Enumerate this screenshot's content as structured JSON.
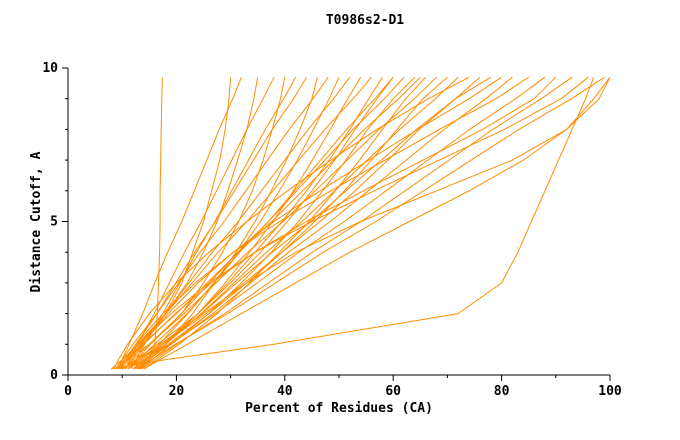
{
  "title": "T0986s2-D1",
  "colors": {
    "curve": "#ff8c00",
    "axis": "#000000",
    "background": "#ffffff"
  },
  "axes": {
    "xticks_major": [
      0,
      20,
      40,
      60,
      80,
      100
    ],
    "xticks_minor": [
      10,
      30,
      50,
      70,
      90
    ],
    "yticks_major": [
      0,
      5,
      10
    ],
    "yticks_minor": [
      1,
      2,
      3,
      4,
      6,
      7,
      8,
      9
    ]
  },
  "chart_data": {
    "type": "line",
    "title": "T0986s2-D1",
    "xlabel": "Percent of Residues (CA)",
    "ylabel": "Distance Cutoff, A",
    "xlim": [
      0,
      100
    ],
    "ylim": [
      0,
      10
    ],
    "grid": false,
    "legend": "none",
    "line_color": "#ff8c00",
    "cutoffs": [
      0.2,
      0.5,
      1,
      2,
      3,
      4,
      5,
      6,
      7,
      8,
      9,
      9.7
    ],
    "series": [
      [
        13,
        15,
        16,
        16.5,
        16.7,
        16.9,
        17,
        17,
        17.1,
        17.2,
        17.3,
        17.4
      ],
      [
        9,
        11,
        14,
        18,
        21,
        23,
        25,
        26.5,
        28,
        29,
        29.7,
        30
      ],
      [
        9.4,
        10,
        11.3,
        13.8,
        16,
        18.4,
        21,
        23.3,
        25.6,
        27.9,
        30.4,
        32
      ],
      [
        8,
        10,
        13,
        18,
        22,
        25,
        27.5,
        29.5,
        31.3,
        33,
        34.3,
        35
      ],
      [
        10.6,
        11.4,
        12.8,
        15.9,
        18.7,
        21.5,
        24.6,
        27.4,
        30.2,
        33,
        36,
        38
      ],
      [
        9,
        11,
        15,
        21,
        25,
        28.5,
        31.5,
        34,
        36,
        37.7,
        39.2,
        40
      ],
      [
        11.6,
        12.6,
        14.1,
        17.5,
        20.6,
        23.7,
        27.1,
        30.2,
        33.3,
        36.4,
        39.8,
        42
      ],
      [
        9.7,
        10.8,
        12.5,
        16.4,
        19.9,
        23.4,
        27.2,
        30.7,
        34.2,
        37.7,
        41.6,
        44
      ],
      [
        13,
        15,
        18,
        23,
        27,
        31,
        34.5,
        37.5,
        40.3,
        42.8,
        45,
        46
      ],
      [
        8.8,
        10,
        12,
        16.4,
        20.4,
        24.4,
        28.8,
        32.8,
        36.8,
        40.8,
        45.2,
        48
      ],
      [
        11,
        13,
        16,
        22,
        27,
        31.5,
        35.5,
        39,
        42.3,
        45.3,
        48.2,
        50
      ],
      [
        9.9,
        11.2,
        13.3,
        18,
        22.3,
        26.6,
        31.4,
        35.7,
        40,
        44.3,
        49,
        52
      ],
      [
        12,
        14,
        18,
        24,
        29,
        33.5,
        37.8,
        41.6,
        45.1,
        48.4,
        51.6,
        54
      ],
      [
        9,
        10.4,
        12.8,
        18.1,
        22.9,
        27.7,
        33,
        37.8,
        42.6,
        47.4,
        52.6,
        56
      ],
      [
        11,
        13.5,
        17.5,
        24,
        29.5,
        34.5,
        39.5,
        44,
        48.2,
        52,
        55.5,
        58
      ],
      [
        13,
        14.4,
        16.8,
        22.1,
        26.9,
        31.7,
        37,
        41.8,
        46.6,
        51.4,
        56.6,
        60
      ],
      [
        10,
        12.5,
        16.5,
        24,
        30,
        35.5,
        40.5,
        45,
        49.2,
        53,
        57,
        60
      ],
      [
        11,
        12.6,
        15.2,
        20.9,
        26.1,
        31.3,
        37,
        42.2,
        47.4,
        52.6,
        58.4,
        62
      ],
      [
        12,
        14.5,
        19,
        26,
        32,
        37.5,
        42.5,
        47,
        51.3,
        55.3,
        60,
        64
      ],
      [
        9.1,
        10.9,
        13.7,
        20,
        25.7,
        31.4,
        37.6,
        43.3,
        49,
        54.7,
        61,
        65
      ],
      [
        14,
        16.5,
        20.5,
        27.5,
        33.5,
        39,
        44.5,
        49.3,
        53.8,
        58,
        62.3,
        66
      ],
      [
        10.2,
        12,
        15,
        21.4,
        27.3,
        33.2,
        39.7,
        45.6,
        51.5,
        57.4,
        63.9,
        68
      ],
      [
        11,
        14,
        18.5,
        26,
        33,
        39.5,
        45.5,
        51,
        56,
        60.7,
        65.5,
        70
      ],
      [
        13.2,
        15,
        18,
        24.6,
        30.6,
        36.6,
        43.2,
        49.2,
        55.2,
        61.2,
        67.8,
        72
      ],
      [
        8.5,
        9.3,
        11,
        15,
        20,
        26,
        33,
        40.5,
        48.5,
        57,
        66.5,
        74
      ],
      [
        12.3,
        14.3,
        17.5,
        24.7,
        31.1,
        37.7,
        44.8,
        51.3,
        57.8,
        64.3,
        71.5,
        76
      ],
      [
        10,
        13,
        17.5,
        25.5,
        32.5,
        39.5,
        46.5,
        53,
        59,
        64.8,
        71.5,
        78
      ],
      [
        10.5,
        11.5,
        13.5,
        18.5,
        24,
        30.5,
        38,
        46.5,
        55.5,
        64.5,
        74,
        80
      ],
      [
        13.4,
        15.5,
        19,
        26.7,
        33.7,
        40.7,
        48.4,
        55.4,
        62.4,
        69.4,
        77.1,
        82
      ],
      [
        9.5,
        10.5,
        12.5,
        17.5,
        23.5,
        30.5,
        39,
        48.5,
        58.5,
        68.5,
        79,
        85
      ],
      [
        12.5,
        14.9,
        18.7,
        27.2,
        34.9,
        42.6,
        51,
        58.7,
        66.4,
        74.1,
        82.6,
        88
      ],
      [
        10.6,
        11.8,
        14,
        19.8,
        26.5,
        34.5,
        44,
        54.5,
        65.5,
        76.5,
        86,
        90
      ],
      [
        13.6,
        16,
        20,
        28.9,
        37,
        45.1,
        54.1,
        62.2,
        70.3,
        78.4,
        87.3,
        93
      ],
      [
        9.6,
        10.8,
        13,
        19,
        26,
        34.5,
        45,
        56.5,
        68.5,
        80.5,
        91,
        96
      ],
      [
        12.8,
        15.4,
        19.8,
        29.5,
        38.3,
        47.1,
        56.8,
        65.6,
        74.4,
        83.2,
        92.9,
        99
      ],
      [
        11,
        13,
        17,
        25,
        33,
        42,
        54,
        68,
        82,
        92,
        97,
        100
      ],
      [
        14,
        17,
        22,
        32,
        42,
        52,
        63,
        74,
        84,
        92,
        98,
        100
      ],
      [
        8,
        18,
        38,
        72,
        80,
        83,
        85.5,
        88,
        90.5,
        93,
        95.5,
        97
      ]
    ]
  }
}
